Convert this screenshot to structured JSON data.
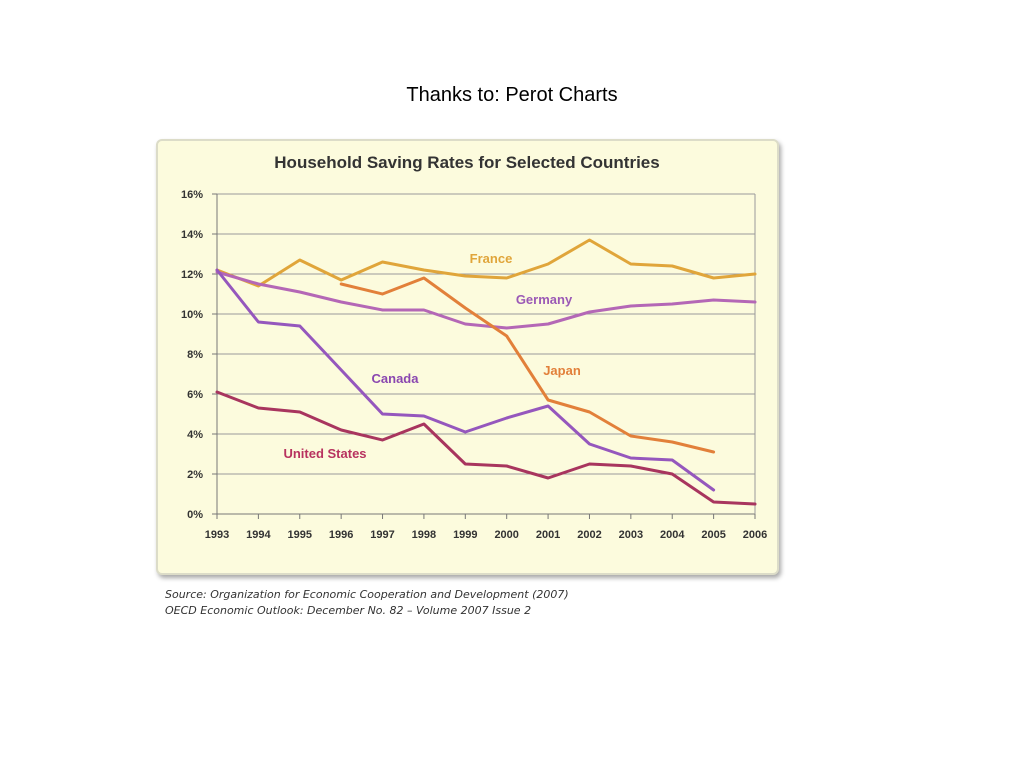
{
  "page_title": "Thanks to:  Perot Charts",
  "source_lines": [
    "Source: Organization for Economic Cooperation and Development (2007)",
    "OECD Economic Outlook: December No. 82 – Volume 2007 Issue 2"
  ],
  "chart_data": {
    "type": "line",
    "title": "Household Saving Rates for Selected Countries",
    "xlabel": "",
    "ylabel": "",
    "x": [
      1993,
      1994,
      1995,
      1996,
      1997,
      1998,
      1999,
      2000,
      2001,
      2002,
      2003,
      2004,
      2005,
      2006
    ],
    "ylim": [
      0,
      16
    ],
    "y_ticks": [
      "0%",
      "2%",
      "4%",
      "6%",
      "8%",
      "10%",
      "12%",
      "14%",
      "16%"
    ],
    "grid": true,
    "legend": "inline labels",
    "series": [
      {
        "name": "France",
        "color": "#e0a53a",
        "values": [
          12.2,
          11.4,
          12.7,
          11.7,
          12.6,
          12.2,
          11.9,
          11.8,
          12.5,
          13.7,
          12.5,
          12.4,
          11.8,
          12.0
        ]
      },
      {
        "name": "Germany",
        "color": "#b467b6",
        "values": [
          12.1,
          11.5,
          11.1,
          10.6,
          10.2,
          10.2,
          9.5,
          9.3,
          9.5,
          10.1,
          10.4,
          10.5,
          10.7,
          10.6
        ]
      },
      {
        "name": "Japan",
        "color": "#e2803a",
        "values": [
          null,
          null,
          null,
          11.5,
          11.0,
          11.8,
          10.3,
          8.9,
          5.7,
          5.1,
          3.9,
          3.6,
          3.1,
          null
        ]
      },
      {
        "name": "Canada",
        "color": "#9557bd",
        "values": [
          12.2,
          9.6,
          9.4,
          7.2,
          5.0,
          4.9,
          4.1,
          4.8,
          5.4,
          3.5,
          2.8,
          2.7,
          1.2,
          null
        ]
      },
      {
        "name": "United States",
        "color": "#a8355e",
        "values": [
          6.1,
          5.3,
          5.1,
          4.2,
          3.7,
          4.5,
          2.5,
          2.4,
          1.8,
          2.5,
          2.4,
          2.0,
          0.6,
          0.5
        ]
      }
    ],
    "label_colors": {
      "France": "#e0a53a",
      "Germany": "#9b59b6",
      "Japan": "#e2803a",
      "Canada": "#8a47b0",
      "United States": "#b8325f"
    }
  }
}
